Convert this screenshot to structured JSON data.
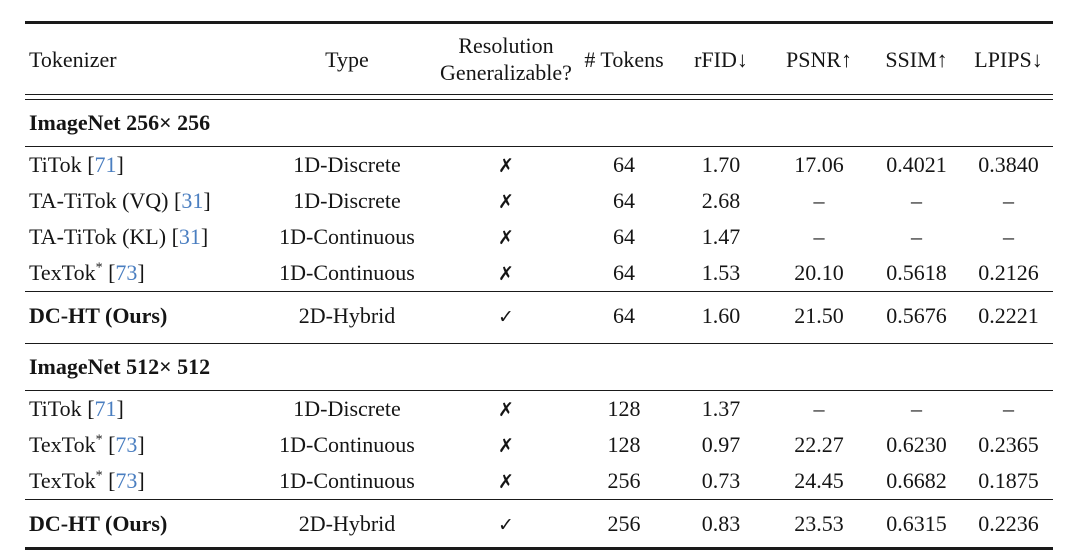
{
  "table": {
    "columns": [
      {
        "key": "tokenizer",
        "label": "Tokenizer"
      },
      {
        "key": "type",
        "label": "Type"
      },
      {
        "key": "res_gen",
        "label": "Resolution\nGeneralizable?"
      },
      {
        "key": "tokens",
        "label": "# Tokens"
      },
      {
        "key": "rfid",
        "label": "rFID↓"
      },
      {
        "key": "psnr",
        "label": "PSNR↑"
      },
      {
        "key": "ssim",
        "label": "SSIM↑"
      },
      {
        "key": "lpips",
        "label": "LPIPS↓"
      }
    ],
    "symbols": {
      "yes": "✓",
      "no": "✗",
      "missing": "–"
    },
    "colors": {
      "citation_blue": "#4a7ec0",
      "text": "#151515",
      "rule": "#1a1a1a"
    },
    "sections": [
      {
        "header": "ImageNet 256× 256",
        "rows": [
          {
            "name": "TiTok",
            "sup": "",
            "cite": "71",
            "bold": false,
            "type": "1D-Discrete",
            "res_gen": "no",
            "tokens": "64",
            "rfid": "1.70",
            "psnr": "17.06",
            "ssim": "0.4021",
            "lpips": "0.3840"
          },
          {
            "name": "TA-TiTok (VQ)",
            "sup": "",
            "cite": "31",
            "bold": false,
            "type": "1D-Discrete",
            "res_gen": "no",
            "tokens": "64",
            "rfid": "2.68",
            "psnr": "–",
            "ssim": "–",
            "lpips": "–"
          },
          {
            "name": "TA-TiTok (KL)",
            "sup": "",
            "cite": "31",
            "bold": false,
            "type": "1D-Continuous",
            "res_gen": "no",
            "tokens": "64",
            "rfid": "1.47",
            "psnr": "–",
            "ssim": "–",
            "lpips": "–"
          },
          {
            "name": "TexTok",
            "sup": "*",
            "cite": "73",
            "bold": false,
            "type": "1D-Continuous",
            "res_gen": "no",
            "tokens": "64",
            "rfid": "1.53",
            "psnr": "20.10",
            "ssim": "0.5618",
            "lpips": "0.2126"
          }
        ],
        "ours_row": {
          "name": "DC-HT (Ours)",
          "sup": "",
          "cite": "",
          "bold": true,
          "type": "2D-Hybrid",
          "res_gen": "yes",
          "tokens": "64",
          "rfid": "1.60",
          "psnr": "21.50",
          "ssim": "0.5676",
          "lpips": "0.2221"
        }
      },
      {
        "header": "ImageNet 512× 512",
        "rows": [
          {
            "name": "TiTok",
            "sup": "",
            "cite": "71",
            "bold": false,
            "type": "1D-Discrete",
            "res_gen": "no",
            "tokens": "128",
            "rfid": "1.37",
            "psnr": "–",
            "ssim": "–",
            "lpips": "–"
          },
          {
            "name": "TexTok",
            "sup": "*",
            "cite": "73",
            "bold": false,
            "type": "1D-Continuous",
            "res_gen": "no",
            "tokens": "128",
            "rfid": "0.97",
            "psnr": "22.27",
            "ssim": "0.6230",
            "lpips": "0.2365"
          },
          {
            "name": "TexTok",
            "sup": "*",
            "cite": "73",
            "bold": false,
            "type": "1D-Continuous",
            "res_gen": "no",
            "tokens": "256",
            "rfid": "0.73",
            "psnr": "24.45",
            "ssim": "0.6682",
            "lpips": "0.1875"
          }
        ],
        "ours_row": {
          "name": "DC-HT (Ours)",
          "sup": "",
          "cite": "",
          "bold": true,
          "type": "2D-Hybrid",
          "res_gen": "yes",
          "tokens": "256",
          "rfid": "0.83",
          "psnr": "23.53",
          "ssim": "0.6315",
          "lpips": "0.2236"
        }
      }
    ]
  }
}
